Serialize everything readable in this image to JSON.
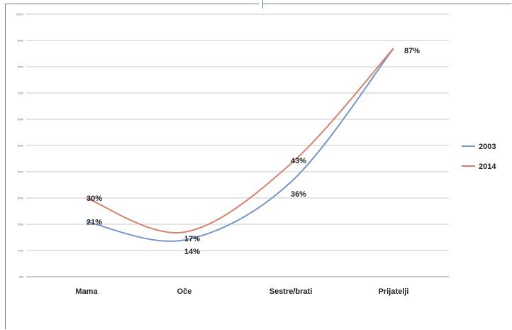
{
  "chart_data": {
    "type": "line",
    "categories": [
      "Mama",
      "Oče",
      "Sestre/brati",
      "Prijatelji"
    ],
    "ylim": [
      0,
      100
    ],
    "yticks": [
      "0%",
      "10%",
      "20%",
      "30%",
      "40%",
      "50%",
      "60%",
      "70%",
      "80%",
      "90%",
      "100%"
    ],
    "grid": true,
    "legend_position": "right",
    "series": [
      {
        "name": "2003",
        "color": "#7895c9",
        "values": [
          21,
          14,
          36,
          87
        ],
        "labels": [
          "21%",
          "14%",
          "36%",
          "87%"
        ]
      },
      {
        "name": "2014",
        "color": "#d6826f",
        "values": [
          30,
          17,
          43,
          87
        ],
        "labels": [
          "30%",
          "17%",
          "43%",
          ""
        ]
      }
    ]
  }
}
